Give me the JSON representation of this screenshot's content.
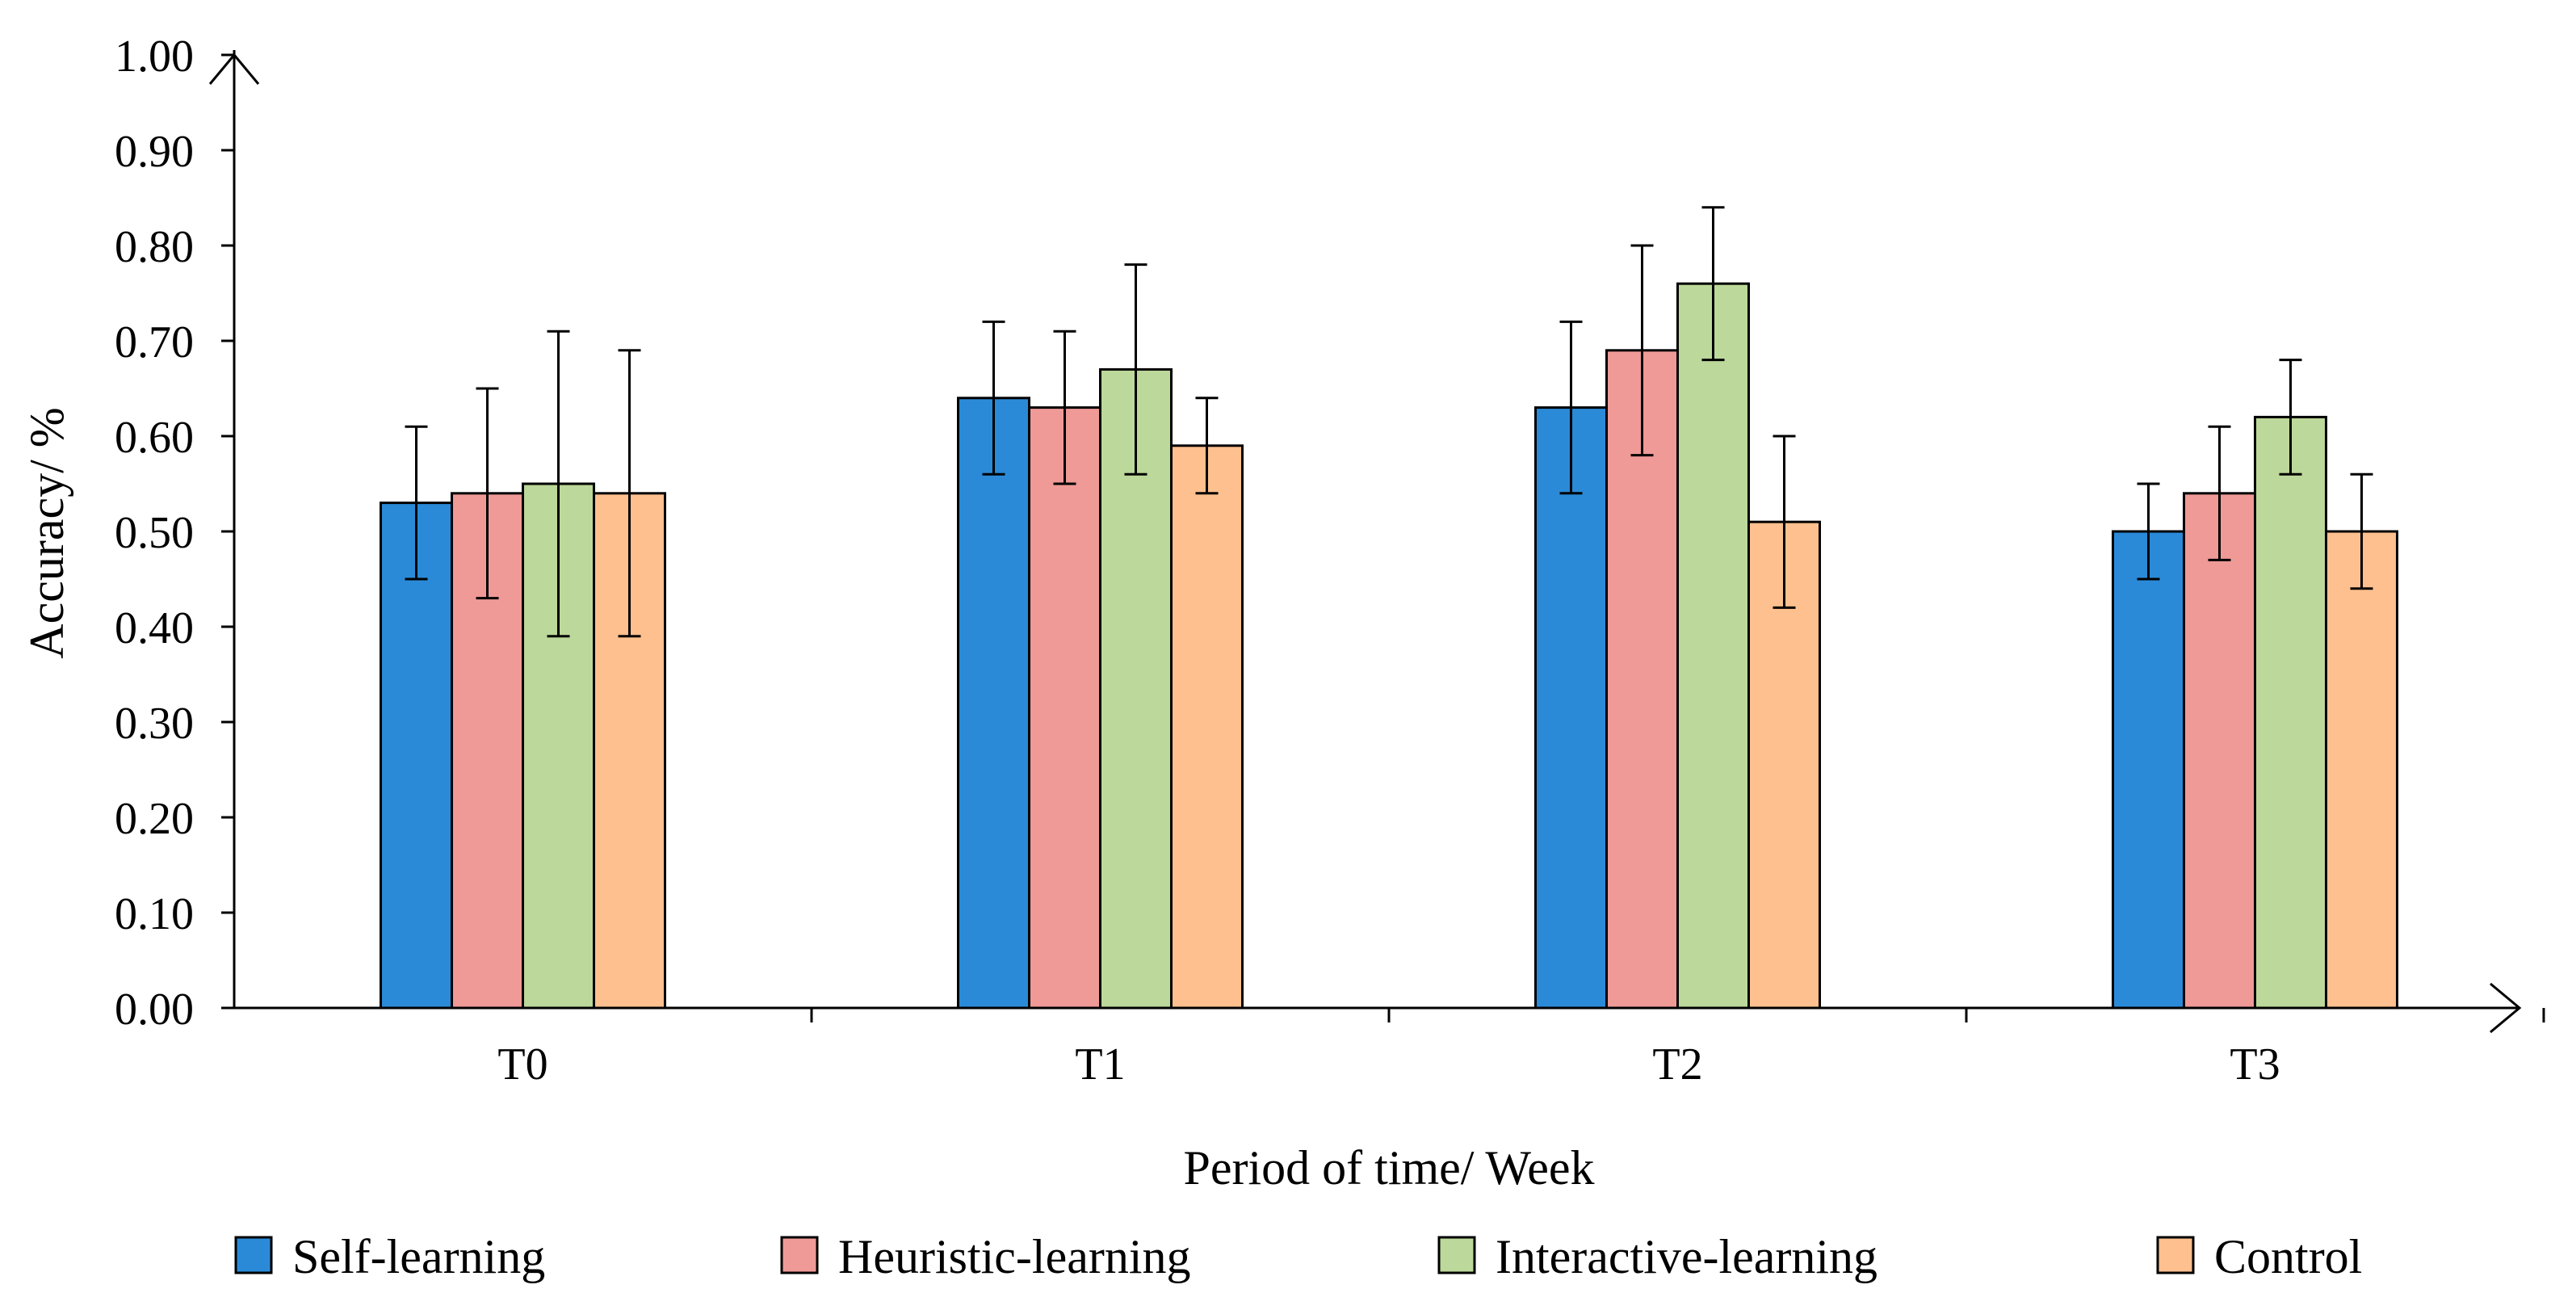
{
  "chart_data": {
    "type": "bar",
    "title": "",
    "xlabel": "Period of time/ Week",
    "ylabel": "Accuracy/ %",
    "ylim": [
      0,
      1.0
    ],
    "ytick_step": 0.1,
    "ytick_labels": [
      "0.00",
      "0.10",
      "0.20",
      "0.30",
      "0.40",
      "0.50",
      "0.60",
      "0.70",
      "0.80",
      "0.90",
      "1.00"
    ],
    "categories": [
      "T0",
      "T1",
      "T2",
      "T3"
    ],
    "grid": false,
    "legend_position": "bottom",
    "series": [
      {
        "name": "Self-learning",
        "color": "#2a8ad8",
        "values": [
          0.53,
          0.64,
          0.63,
          0.5
        ],
        "err_low": [
          0.45,
          0.56,
          0.54,
          0.45
        ],
        "err_high": [
          0.61,
          0.72,
          0.72,
          0.55
        ]
      },
      {
        "name": "Heuristic-learning",
        "color": "#ef9a97",
        "values": [
          0.54,
          0.63,
          0.69,
          0.54
        ],
        "err_low": [
          0.43,
          0.55,
          0.58,
          0.47
        ],
        "err_high": [
          0.65,
          0.71,
          0.8,
          0.61
        ]
      },
      {
        "name": "Interactive-learning",
        "color": "#bcd89a",
        "values": [
          0.55,
          0.67,
          0.76,
          0.62
        ],
        "err_low": [
          0.39,
          0.56,
          0.68,
          0.56
        ],
        "err_high": [
          0.71,
          0.78,
          0.84,
          0.68
        ]
      },
      {
        "name": "Control",
        "color": "#fec08e",
        "values": [
          0.54,
          0.59,
          0.51,
          0.5
        ],
        "err_low": [
          0.39,
          0.54,
          0.42,
          0.44
        ],
        "err_high": [
          0.69,
          0.64,
          0.6,
          0.56
        ]
      }
    ]
  }
}
